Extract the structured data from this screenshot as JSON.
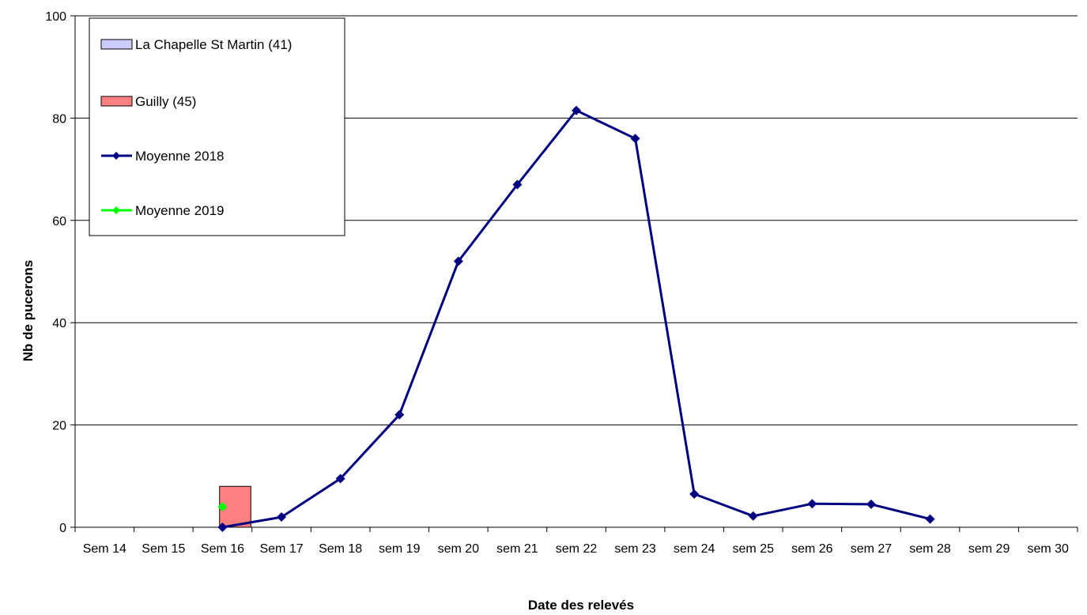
{
  "chart_data": {
    "type": "bar",
    "categories": [
      "Sem 14",
      "Sem 15",
      "Sem 16",
      "Sem 17",
      "Sem 18",
      "sem 19",
      "sem 20",
      "sem 21",
      "sem 22",
      "sem 23",
      "sem 24",
      "sem 25",
      "sem 26",
      "sem 27",
      "sem 28",
      "sem 29",
      "sem 30"
    ],
    "title": "",
    "xlabel": "Date des relevés",
    "ylabel": "Nb de pucerons",
    "ylim": [
      0,
      100
    ],
    "yticks": [
      0,
      20,
      40,
      60,
      80,
      100
    ],
    "grid": true,
    "legend_position": "top-left",
    "series": [
      {
        "name": "La Chapelle St Martin (41)",
        "kind": "bar",
        "color": "#CCCCFF",
        "values": [
          null,
          null,
          null,
          null,
          null,
          null,
          null,
          null,
          null,
          null,
          null,
          null,
          null,
          null,
          null,
          null,
          null
        ]
      },
      {
        "name": "Guilly (45)",
        "kind": "bar",
        "color": "#FF8080",
        "values": [
          null,
          null,
          8,
          null,
          null,
          null,
          null,
          null,
          null,
          null,
          null,
          null,
          null,
          null,
          null,
          null,
          null
        ]
      },
      {
        "name": "Moyenne 2018",
        "kind": "line",
        "color": "#000080",
        "values": [
          null,
          null,
          0,
          2,
          9.5,
          22,
          52,
          67,
          81.5,
          76,
          6.5,
          2.2,
          4.6,
          4.5,
          1.6,
          null,
          null
        ]
      },
      {
        "name": "Moyenne 2019",
        "kind": "line",
        "color": "#00FF00",
        "values": [
          null,
          null,
          4,
          null,
          null,
          null,
          null,
          null,
          null,
          null,
          null,
          null,
          null,
          null,
          null,
          null,
          null
        ]
      }
    ]
  }
}
